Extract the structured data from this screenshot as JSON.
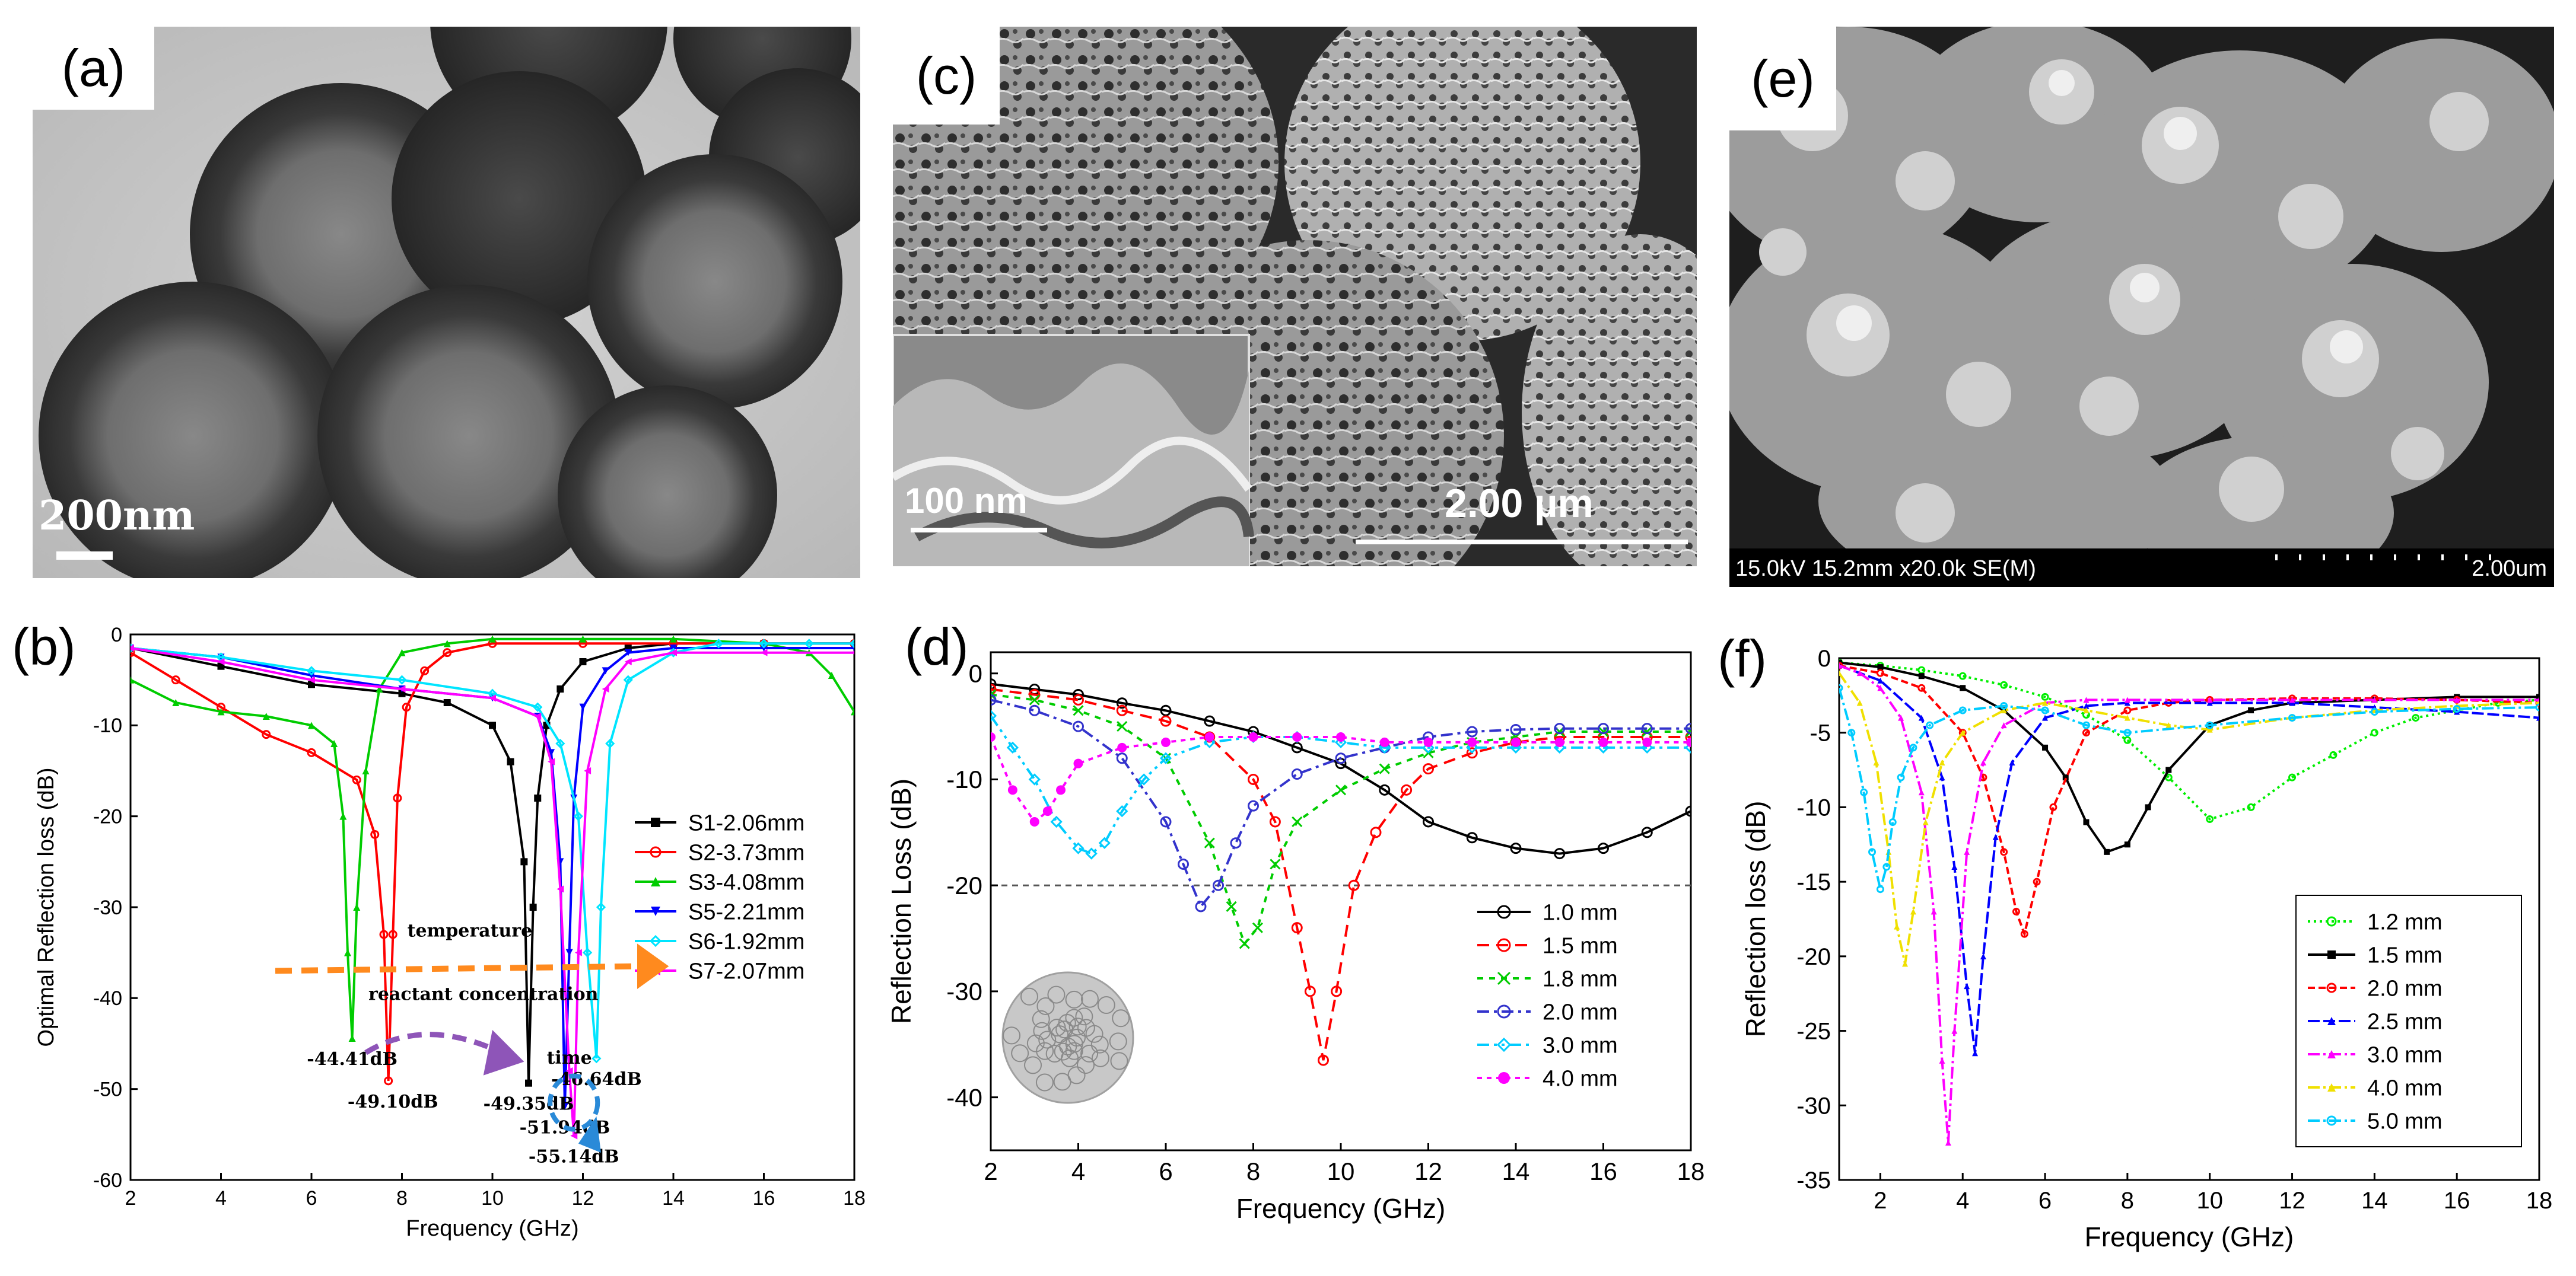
{
  "panels": {
    "a": {
      "label": "(a)",
      "scale_bar": "200nm"
    },
    "c": {
      "label": "(c)",
      "inset_scale_bar": "100 nm",
      "scale_bar": "2.00 µm"
    },
    "e": {
      "label": "(e)",
      "info": "15.0kV 15.2mm x20.0k SE(M)",
      "scale_bar": "2.00um"
    },
    "b": {
      "label": "(b)"
    },
    "d": {
      "label": "(d)"
    },
    "f": {
      "label": "(f)"
    }
  },
  "chart_data": [
    {
      "id": "b",
      "type": "line",
      "xlabel": "Frequency (GHz)",
      "ylabel": "Optimal Reflection loss (dB)",
      "xlim": [
        2,
        18
      ],
      "ylim": [
        -60,
        0
      ],
      "xticks": [
        "2",
        "4",
        "6",
        "8",
        "10",
        "12",
        "14",
        "16",
        "18"
      ],
      "yticks": [
        "0",
        "-10",
        "-20",
        "-30",
        "-40",
        "-50",
        "-60"
      ],
      "legend_position": "center-right",
      "series": [
        {
          "name": "S1-2.06mm",
          "color": "#000000",
          "marker": "square",
          "x": [
            2,
            4,
            6,
            8,
            9,
            10,
            10.4,
            10.7,
            10.8,
            10.9,
            11.0,
            11.2,
            11.5,
            12,
            13,
            14,
            16,
            18
          ],
          "y": [
            -1.5,
            -3.5,
            -5.5,
            -6.5,
            -7.5,
            -10,
            -14,
            -25,
            -49.35,
            -30,
            -18,
            -10,
            -6,
            -3,
            -1.5,
            -1,
            -1,
            -1
          ]
        },
        {
          "name": "S2-3.73mm",
          "color": "#ff0000",
          "marker": "circle",
          "x": [
            2,
            3,
            4,
            5,
            6,
            7,
            7.4,
            7.6,
            7.7,
            7.8,
            7.9,
            8.1,
            8.5,
            9,
            10,
            12,
            14,
            16,
            18
          ],
          "y": [
            -2,
            -5,
            -8,
            -11,
            -13,
            -16,
            -22,
            -33,
            -49.1,
            -33,
            -18,
            -8,
            -4,
            -2,
            -1,
            -1,
            -1,
            -1,
            -1
          ]
        },
        {
          "name": "S3-4.08mm",
          "color": "#00cc00",
          "marker": "triangle",
          "x": [
            2,
            3,
            4,
            5,
            6,
            6.5,
            6.7,
            6.8,
            6.9,
            7.0,
            7.2,
            7.5,
            8,
            9,
            10,
            12,
            14,
            16,
            17,
            17.5,
            18
          ],
          "y": [
            -5,
            -7.5,
            -8.5,
            -9,
            -10,
            -12,
            -20,
            -35,
            -44.41,
            -30,
            -15,
            -6,
            -2,
            -1,
            -0.5,
            -0.5,
            -0.5,
            -1,
            -2,
            -4.5,
            -8.5
          ]
        },
        {
          "name": "S5-2.21mm",
          "color": "#0000ff",
          "marker": "triangle-down",
          "x": [
            2,
            4,
            6,
            8,
            10,
            11,
            11.3,
            11.5,
            11.6,
            11.7,
            11.8,
            12,
            12.5,
            13,
            14,
            16,
            18
          ],
          "y": [
            -1.5,
            -2.5,
            -4.5,
            -6,
            -7,
            -9,
            -13,
            -25,
            -51.94,
            -35,
            -18,
            -8,
            -4,
            -2,
            -1.5,
            -1.5,
            -1.5
          ]
        },
        {
          "name": "S6-1.92mm",
          "color": "#00e5ff",
          "marker": "diamond",
          "x": [
            2,
            4,
            6,
            8,
            10,
            11,
            11.5,
            11.9,
            12.1,
            12.3,
            12.4,
            12.6,
            13,
            14,
            15,
            16,
            17,
            18
          ],
          "y": [
            -1.5,
            -2.5,
            -4,
            -5,
            -6.5,
            -8,
            -12,
            -20,
            -35,
            -46.64,
            -30,
            -12,
            -5,
            -2,
            -1,
            -1,
            -1,
            -1
          ]
        },
        {
          "name": "S7-2.07mm",
          "color": "#ff00ff",
          "marker": "triangle-left",
          "x": [
            2,
            4,
            6,
            8,
            10,
            11,
            11.3,
            11.5,
            11.7,
            11.8,
            11.9,
            12.1,
            12.5,
            13,
            14,
            16,
            18
          ],
          "y": [
            -1.5,
            -3,
            -5,
            -6,
            -7,
            -9,
            -14,
            -28,
            -48,
            -55.14,
            -35,
            -15,
            -6,
            -3,
            -2,
            -2,
            -2
          ]
        }
      ],
      "annotations": [
        {
          "text": "-44.41dB",
          "x": 6.9,
          "y": -44.41
        },
        {
          "text": "-49.10dB",
          "x": 7.8,
          "y": -49.1
        },
        {
          "text": "-49.35dB",
          "x": 10.8,
          "y": -49.35
        },
        {
          "text": "-51.94dB",
          "x": 11.6,
          "y": -51.94
        },
        {
          "text": "-55.14dB",
          "x": 11.8,
          "y": -55.14
        },
        {
          "text": "-46.64dB",
          "x": 12.3,
          "y": -46.64
        },
        {
          "text": "temperature",
          "x": 9.5,
          "y": -34
        },
        {
          "text": "reactant concentration",
          "x": 9.8,
          "y": -41
        },
        {
          "text": "time",
          "x": 11.7,
          "y": -48
        }
      ]
    },
    {
      "id": "d",
      "type": "line",
      "xlabel": "Frequency (GHz)",
      "ylabel": "Reflection Loss (dB)",
      "xlim": [
        2,
        18
      ],
      "ylim": [
        -45,
        2
      ],
      "xticks": [
        "2",
        "4",
        "6",
        "8",
        "10",
        "12",
        "14",
        "16",
        "18"
      ],
      "yticks": [
        "0",
        "-10",
        "-20",
        "-30",
        "-40"
      ],
      "reference_line": -20,
      "legend_position": "bottom-right",
      "series": [
        {
          "name": "1.0 mm",
          "color": "#000000",
          "marker": "circle",
          "x": [
            2,
            3,
            4,
            5,
            6,
            7,
            8,
            9,
            10,
            11,
            12,
            13,
            14,
            15,
            16,
            17,
            18
          ],
          "y": [
            -1,
            -1.5,
            -2,
            -2.8,
            -3.5,
            -4.5,
            -5.5,
            -7,
            -8.5,
            -11,
            -14,
            -15.5,
            -16.5,
            -17,
            -16.5,
            -15,
            -13
          ]
        },
        {
          "name": "1.5 mm",
          "color": "#ff0000",
          "marker": "circle-cross",
          "x": [
            2,
            3,
            4,
            5,
            6,
            7,
            8,
            8.5,
            9,
            9.3,
            9.6,
            9.9,
            10.3,
            10.8,
            11.5,
            12,
            13,
            14,
            15,
            16,
            17,
            18
          ],
          "y": [
            -1.5,
            -2,
            -2.5,
            -3.5,
            -4.5,
            -6,
            -10,
            -14,
            -24,
            -30,
            -36.5,
            -30,
            -20,
            -15,
            -11,
            -9,
            -7.5,
            -6.5,
            -6,
            -6,
            -6,
            -6
          ]
        },
        {
          "name": "1.8 mm",
          "color": "#00cc00",
          "marker": "x",
          "x": [
            2,
            3,
            4,
            5,
            6,
            7,
            7.5,
            7.8,
            8.1,
            8.5,
            9,
            10,
            11,
            12,
            13,
            14,
            15,
            16,
            17,
            18
          ],
          "y": [
            -2,
            -2.5,
            -3.5,
            -5,
            -8,
            -16,
            -22,
            -25.5,
            -24,
            -18,
            -14,
            -11,
            -9,
            -7.5,
            -6.5,
            -6,
            -5.5,
            -5.5,
            -5.5,
            -5.5
          ]
        },
        {
          "name": "2.0 mm",
          "color": "#3333cc",
          "marker": "circle",
          "x": [
            2,
            3,
            4,
            5,
            6,
            6.4,
            6.8,
            7.2,
            7.6,
            8,
            9,
            10,
            11,
            12,
            13,
            14,
            15,
            16,
            17,
            18
          ],
          "y": [
            -2.5,
            -3.5,
            -5,
            -8,
            -14,
            -18,
            -22,
            -20,
            -16,
            -12.5,
            -9.5,
            -8,
            -7,
            -6,
            -5.5,
            -5.3,
            -5.2,
            -5.2,
            -5.2,
            -5.2
          ]
        },
        {
          "name": "3.0 mm",
          "color": "#00ccff",
          "marker": "diamond",
          "x": [
            2,
            2.5,
            3,
            3.5,
            4,
            4.3,
            4.6,
            5,
            5.5,
            6,
            7,
            8,
            9,
            10,
            11,
            12,
            13,
            14,
            15,
            16,
            17,
            18
          ],
          "y": [
            -4,
            -7,
            -10,
            -14,
            -16.5,
            -17,
            -16,
            -13,
            -10,
            -8,
            -6.5,
            -6,
            -6,
            -6.5,
            -7,
            -7,
            -7,
            -7,
            -7,
            -7,
            -7,
            -7
          ]
        },
        {
          "name": "4.0 mm",
          "color": "#ff00ff",
          "marker": "star",
          "x": [
            2,
            2.5,
            3,
            3.3,
            3.6,
            4,
            5,
            6,
            7,
            8,
            9,
            10,
            11,
            12,
            13,
            14,
            15,
            16,
            17,
            18
          ],
          "y": [
            -6,
            -11,
            -14,
            -13,
            -11,
            -8.5,
            -7,
            -6.5,
            -6,
            -6,
            -6,
            -6,
            -6.5,
            -6.5,
            -6.5,
            -6.5,
            -6.5,
            -6.5,
            -6.5,
            -6.5
          ]
        }
      ]
    },
    {
      "id": "f",
      "type": "line",
      "xlabel": "Frequency (GHz)",
      "ylabel": "Reflection loss (dB)",
      "xlim": [
        1,
        18
      ],
      "ylim": [
        -35,
        0
      ],
      "xticks": [
        "2",
        "4",
        "6",
        "8",
        "10",
        "12",
        "14",
        "16",
        "18"
      ],
      "yticks": [
        "0",
        "-5",
        "-10",
        "-15",
        "-20",
        "-25",
        "-30",
        "-35"
      ],
      "legend_position": "bottom-right",
      "series": [
        {
          "name": "1.2 mm",
          "color": "#00ee00",
          "marker": "circle",
          "x": [
            1,
            2,
            3,
            4,
            5,
            6,
            7,
            8,
            9,
            10,
            11,
            12,
            13,
            14,
            15,
            16,
            17,
            18
          ],
          "y": [
            -0.3,
            -0.5,
            -0.8,
            -1.2,
            -1.8,
            -2.6,
            -3.8,
            -5.5,
            -8,
            -10.8,
            -10,
            -8,
            -6.5,
            -5,
            -4,
            -3.5,
            -3,
            -2.8
          ]
        },
        {
          "name": "1.5 mm",
          "color": "#000000",
          "marker": "square",
          "x": [
            1,
            2,
            3,
            4,
            5,
            6,
            6.5,
            7,
            7.5,
            8,
            8.5,
            9,
            10,
            11,
            12,
            14,
            16,
            18
          ],
          "y": [
            -0.3,
            -0.6,
            -1.2,
            -2,
            -3.5,
            -6,
            -8,
            -11,
            -13,
            -12.5,
            -10,
            -7.5,
            -4.5,
            -3.5,
            -3,
            -2.8,
            -2.6,
            -2.6
          ]
        },
        {
          "name": "2.0 mm",
          "color": "#ff0000",
          "marker": "circle",
          "x": [
            1,
            2,
            3,
            4,
            4.5,
            5,
            5.3,
            5.5,
            5.8,
            6.2,
            7,
            8,
            9,
            10,
            12,
            14,
            16,
            18
          ],
          "y": [
            -0.5,
            -1,
            -2,
            -5,
            -8,
            -13,
            -17,
            -18.5,
            -15,
            -10,
            -5,
            -3.5,
            -3,
            -2.8,
            -2.7,
            -2.7,
            -2.8,
            -3
          ]
        },
        {
          "name": "2.5 mm",
          "color": "#0000ff",
          "marker": "triangle",
          "x": [
            1,
            2,
            3,
            3.5,
            3.8,
            4.1,
            4.3,
            4.5,
            4.8,
            5.2,
            6,
            7,
            8,
            10,
            12,
            14,
            16,
            18
          ],
          "y": [
            -0.5,
            -1.5,
            -4,
            -8,
            -14,
            -22,
            -26.5,
            -20,
            -12,
            -7,
            -4,
            -3.2,
            -3,
            -3,
            -3,
            -3.3,
            -3.6,
            -4
          ]
        },
        {
          "name": "3.0 mm",
          "color": "#ff00ff",
          "marker": "triangle",
          "x": [
            1,
            1.5,
            2,
            2.5,
            3,
            3.3,
            3.5,
            3.65,
            3.8,
            4.1,
            4.5,
            5,
            6,
            7,
            8,
            10,
            12,
            14,
            16,
            18
          ],
          "y": [
            -0.5,
            -1,
            -2,
            -4,
            -9,
            -17,
            -27,
            -32.5,
            -25,
            -13,
            -7,
            -4.5,
            -3,
            -2.8,
            -2.8,
            -2.8,
            -2.8,
            -2.8,
            -2.8,
            -2.8
          ]
        },
        {
          "name": "4.0 mm",
          "color": "#f0e000",
          "marker": "triangle",
          "x": [
            1,
            1.5,
            1.9,
            2.2,
            2.4,
            2.6,
            2.8,
            3.1,
            3.5,
            4,
            5,
            6,
            7,
            8,
            9,
            10,
            12,
            14,
            16,
            18
          ],
          "y": [
            -1,
            -3,
            -7,
            -13,
            -18,
            -20.5,
            -17,
            -11,
            -7,
            -5,
            -3.5,
            -3,
            -3.5,
            -4,
            -4.5,
            -4.8,
            -4,
            -3.5,
            -3.2,
            -3
          ]
        },
        {
          "name": "5.0 mm",
          "color": "#00ccff",
          "marker": "circle",
          "x": [
            1,
            1.3,
            1.6,
            1.8,
            2.0,
            2.15,
            2.3,
            2.5,
            2.8,
            3.2,
            4,
            5,
            6,
            7,
            8,
            10,
            12,
            14,
            16,
            18
          ],
          "y": [
            -2,
            -5,
            -9,
            -13,
            -15.5,
            -14,
            -11,
            -8,
            -6,
            -4.5,
            -3.5,
            -3.2,
            -3.5,
            -4.5,
            -5,
            -4.5,
            -4,
            -3.6,
            -3.4,
            -3.3
          ]
        }
      ]
    }
  ]
}
